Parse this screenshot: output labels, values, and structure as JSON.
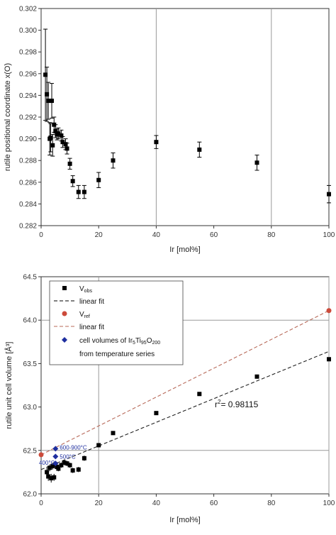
{
  "chart_data": [
    {
      "type": "scatter",
      "title": "",
      "xlabel": "Ir [mol%]",
      "ylabel": "rutile positional coordinate x(O)",
      "xlim": [
        0,
        100
      ],
      "ylim": [
        0.282,
        0.302
      ],
      "xticks": [
        "0",
        "20",
        "40",
        "60",
        "80",
        "100"
      ],
      "yticks": [
        "0.282",
        "0.284",
        "0.286",
        "0.288",
        "0.290",
        "0.292",
        "0.294",
        "0.296",
        "0.298",
        "0.300",
        "0.302"
      ],
      "grid": "vertical lines at x = 40 and x = 80",
      "series": [
        {
          "marker": "square",
          "color": "#000000",
          "points": [
            {
              "x": 1.5,
              "y": 0.2959,
              "err": 0.0042
            },
            {
              "x": 2.0,
              "y": 0.2941,
              "err": 0.0025
            },
            {
              "x": 2.5,
              "y": 0.2935,
              "err": 0.0017
            },
            {
              "x": 3.0,
              "y": 0.29,
              "err": 0.0015
            },
            {
              "x": 3.3,
              "y": 0.2901,
              "err": 0.0013
            },
            {
              "x": 3.7,
              "y": 0.2935,
              "err": 0.0016
            },
            {
              "x": 4.0,
              "y": 0.2894,
              "err": 0.001
            },
            {
              "x": 4.5,
              "y": 0.2913,
              "err": 0.0007
            },
            {
              "x": 5.0,
              "y": 0.2907,
              "err": 0.0006
            },
            {
              "x": 5.5,
              "y": 0.2904,
              "err": 0.0005
            },
            {
              "x": 6.0,
              "y": 0.2905,
              "err": 0.0005
            },
            {
              "x": 7.0,
              "y": 0.2903,
              "err": 0.0005
            },
            {
              "x": 7.5,
              "y": 0.2897,
              "err": 0.0005
            },
            {
              "x": 8.5,
              "y": 0.2895,
              "err": 0.0005
            },
            {
              "x": 9.0,
              "y": 0.2891,
              "err": 0.0005
            },
            {
              "x": 10.0,
              "y": 0.2877,
              "err": 0.0005
            },
            {
              "x": 11.0,
              "y": 0.2861,
              "err": 0.0005
            },
            {
              "x": 13.0,
              "y": 0.2851,
              "err": 0.0006
            },
            {
              "x": 15.0,
              "y": 0.2851,
              "err": 0.0006
            },
            {
              "x": 20.0,
              "y": 0.2862,
              "err": 0.0007
            },
            {
              "x": 25.0,
              "y": 0.288,
              "err": 0.0007
            },
            {
              "x": 40.0,
              "y": 0.2897,
              "err": 0.0006
            },
            {
              "x": 55.0,
              "y": 0.289,
              "err": 0.0007
            },
            {
              "x": 75.0,
              "y": 0.2878,
              "err": 0.0007
            },
            {
              "x": 100.0,
              "y": 0.2849,
              "err": 0.0008
            }
          ]
        }
      ]
    },
    {
      "type": "scatter",
      "title": "",
      "xlabel": "Ir [mol%]",
      "ylabel": "rutile unit cell volume [Å³]",
      "xlim": [
        0,
        100
      ],
      "ylim": [
        62.0,
        64.5
      ],
      "xticks": [
        "0",
        "20",
        "40",
        "60",
        "80",
        "100"
      ],
      "yticks": [
        "62.0",
        "62.5",
        "63.0",
        "63.5",
        "64.0",
        "64.5"
      ],
      "grid": "lines at x = 20, x = 100, y = 62.5, y = 64.0",
      "legend_position": "top-left",
      "legend": [
        {
          "label": "V",
          "sub": "obs",
          "kind": "marker",
          "shape": "square",
          "color": "#000000"
        },
        {
          "label": "linear fit",
          "kind": "line",
          "color": "#000000"
        },
        {
          "label": "V",
          "sub": "ref",
          "kind": "marker",
          "shape": "circle",
          "color": "#cc4a3a"
        },
        {
          "label": "linear fit",
          "kind": "line",
          "color": "#b86a5a"
        },
        {
          "label_parts": [
            "cell volumes of Ir",
            "5",
            "Ti",
            "95",
            "O",
            "200"
          ],
          "kind": "marker",
          "shape": "diamond",
          "color": "#1f2f9f"
        },
        {
          "label": "from temperature series",
          "kind": "text"
        }
      ],
      "annotation": {
        "r_label": "r",
        "r_exp": "2",
        "r_value": "= 0.98115"
      },
      "series": [
        {
          "name": "V_obs",
          "marker": "square",
          "color": "#000000",
          "points": [
            {
              "x": 2.0,
              "y": 62.25,
              "err": 0.05
            },
            {
              "x": 2.5,
              "y": 62.2,
              "err": 0.05
            },
            {
              "x": 3.0,
              "y": 62.3,
              "err": 0.04
            },
            {
              "x": 3.5,
              "y": 62.18,
              "err": 0.05
            },
            {
              "x": 4.0,
              "y": 62.32,
              "err": 0.04
            },
            {
              "x": 4.5,
              "y": 62.19,
              "err": 0.04
            },
            {
              "x": 5.0,
              "y": 62.34,
              "err": 0.03
            },
            {
              "x": 5.5,
              "y": 62.31,
              "err": 0.03
            },
            {
              "x": 6.0,
              "y": 62.29,
              "err": 0.03
            },
            {
              "x": 7.0,
              "y": 62.33,
              "err": 0.03
            },
            {
              "x": 8.0,
              "y": 62.36,
              "err": 0.03
            },
            {
              "x": 9.0,
              "y": 62.35,
              "err": 0.03
            },
            {
              "x": 10.0,
              "y": 62.33,
              "err": 0.03
            },
            {
              "x": 11.0,
              "y": 62.27,
              "err": 0.03
            },
            {
              "x": 13.0,
              "y": 62.28,
              "err": 0.03
            },
            {
              "x": 15.0,
              "y": 62.41,
              "err": 0.03
            },
            {
              "x": 20.0,
              "y": 62.56,
              "err": 0.02
            },
            {
              "x": 25.0,
              "y": 62.7,
              "err": 0.02
            },
            {
              "x": 40.0,
              "y": 62.93,
              "err": 0.02
            },
            {
              "x": 55.0,
              "y": 63.15,
              "err": 0.02
            },
            {
              "x": 75.0,
              "y": 63.35,
              "err": 0.02
            },
            {
              "x": 100.0,
              "y": 63.55,
              "err": 0.02
            }
          ]
        },
        {
          "name": "V_ref",
          "marker": "circle",
          "color": "#cc4a3a",
          "points": [
            {
              "x": 0,
              "y": 62.45
            },
            {
              "x": 100,
              "y": 64.11
            }
          ]
        },
        {
          "name": "temperature series",
          "marker": "diamond",
          "color": "#1f2f9f",
          "points": [
            {
              "x": 5,
              "y": 62.52,
              "label": "600-900°C"
            },
            {
              "x": 5,
              "y": 62.43,
              "label": "500°C"
            },
            {
              "x": 5,
              "y": 62.35,
              "label": "400°C"
            }
          ]
        }
      ],
      "fits": [
        {
          "color": "#222222",
          "from": [
            0,
            62.28
          ],
          "to": [
            100,
            63.64
          ]
        },
        {
          "color": "#b86a5a",
          "from": [
            0,
            62.45
          ],
          "to": [
            100,
            64.11
          ]
        }
      ]
    }
  ]
}
